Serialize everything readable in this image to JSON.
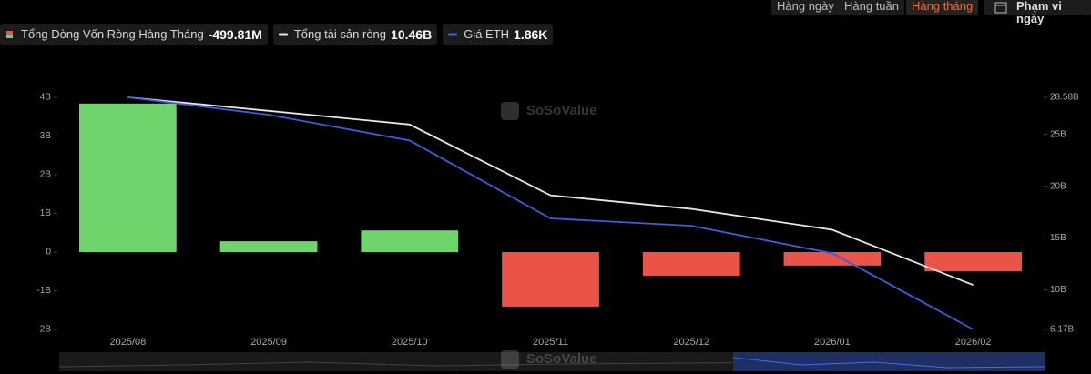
{
  "toolbar": {
    "periods": [
      "Hàng ngày",
      "Hàng tuần",
      "Hàng tháng"
    ],
    "active_period": 2,
    "date_range": "Phạm vi ngày"
  },
  "watermark": "SoSoValue",
  "chart_data": {
    "type": "combo",
    "categories": [
      "2025/08",
      "2025/09",
      "2025/10",
      "2025/11",
      "2025/12",
      "2026/01",
      "2026/02"
    ],
    "series": [
      {
        "name": "Tổng Dòng Vốn Ròng Hàng Tháng",
        "type": "bar",
        "color": "#6fd46b",
        "negative_color": "#ea5348",
        "values": [
          3.84,
          0.28,
          0.56,
          -1.41,
          -0.61,
          -0.35,
          -0.49981
        ],
        "readout": {
          "value": -0.49981,
          "label": "-499.81M"
        }
      },
      {
        "name": "Tổng tài sản ròng",
        "type": "line",
        "axis": "y2",
        "color": "#e6e6e6",
        "values": [
          28.58,
          27.28,
          25.96,
          19.12,
          17.81,
          15.79,
          10.46
        ],
        "readout": {
          "value": 10.46,
          "label": "10.46B"
        }
      },
      {
        "name": "Giá ETH",
        "type": "line",
        "axis": "y3",
        "color": "#3d5ce0",
        "values": [
          4.39,
          4.2,
          3.92,
          3.07,
          2.99,
          2.69,
          1.86
        ],
        "readout": {
          "value": 1.86,
          "label": "1.86K"
        }
      }
    ],
    "ylim": [
      -2,
      4
    ],
    "yticks": [
      {
        "value": -2,
        "label": "-2B"
      },
      {
        "value": -1,
        "label": "-1B"
      },
      0,
      {
        "value": 1,
        "label": "1B"
      },
      {
        "value": 2,
        "label": "2B"
      },
      {
        "value": 3,
        "label": "3B"
      },
      {
        "value": 4,
        "label": "4B"
      }
    ],
    "y2lim": [
      6.17,
      28.58
    ],
    "y2ticks": [
      {
        "value": 6.17,
        "label": "6.17B"
      },
      {
        "value": 10,
        "label": "10B"
      },
      {
        "value": 15,
        "label": "15B"
      },
      {
        "value": 20,
        "label": "20B"
      },
      {
        "value": 25,
        "label": "25B"
      },
      {
        "value": 28.58,
        "label": "28.58B"
      }
    ],
    "grid": false
  }
}
